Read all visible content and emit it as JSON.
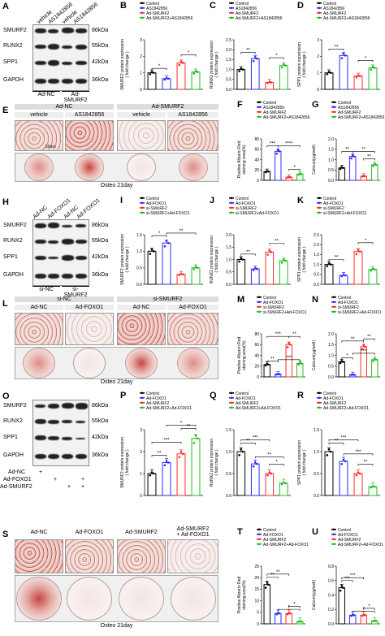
{
  "panels": {
    "A": {
      "label": "A",
      "lanes": [
        "vehicle",
        "AS1842856",
        "vehicle",
        "AS1842856"
      ],
      "groups": [
        "Ad-NC",
        "Ad-SMURF2"
      ],
      "rows": [
        {
          "name": "SMURF2",
          "kda": "86kDa"
        },
        {
          "name": "RUNX2",
          "kda": "55kDa"
        },
        {
          "name": "SPP1",
          "kda": "42kDa"
        },
        {
          "name": "GAPDH",
          "kda": "36kDa"
        }
      ]
    },
    "E": {
      "label": "E",
      "groups": [
        "Ad-NC",
        "Ad-SMURF2"
      ],
      "lanes": [
        "vehicle",
        "AS1842856",
        "vehicle",
        "AS1842856"
      ],
      "footer": "Osteo 21day",
      "scale": "50um"
    },
    "H": {
      "label": "H",
      "lanes": [
        "Ad-NC",
        "Ad-FOXO1",
        "Ad-NC",
        "Ad-FOXO1"
      ],
      "groups": [
        "si-NC",
        "si-SMURF2"
      ],
      "rows": [
        {
          "name": "SMURF2",
          "kda": "86kDa"
        },
        {
          "name": "RUNX2",
          "kda": "55kDa"
        },
        {
          "name": "SPP1",
          "kda": "42kDa"
        },
        {
          "name": "GAPDH",
          "kda": "36kDa"
        }
      ]
    },
    "L": {
      "label": "L",
      "groups": [
        "si-NC",
        "si-SMURF2"
      ],
      "lanes": [
        "Ad-NC",
        "Ad-FOXO1",
        "Ad-NC",
        "Ad-FOXO1"
      ],
      "footer": "Osteo 21day"
    },
    "O": {
      "label": "O",
      "rows": [
        {
          "name": "SMURF2",
          "kda": "86kDa"
        },
        {
          "name": "RUNX2",
          "kda": "55kDa"
        },
        {
          "name": "SPP1",
          "kda": "42kDa"
        },
        {
          "name": "GAPDH",
          "kda": "36kDa"
        }
      ],
      "treatments": [
        {
          "name": "Ad-NC",
          "marks": [
            "+",
            "",
            "",
            ""
          ]
        },
        {
          "name": "Ad-FOXO1",
          "marks": [
            "",
            "+",
            "",
            "+"
          ]
        },
        {
          "name": "Ad-SMURF2",
          "marks": [
            "",
            "",
            "+",
            "+"
          ]
        }
      ]
    },
    "S": {
      "label": "S",
      "lanes": [
        "Ad-NC",
        "Ad-FOXO1",
        "Ad-SMURF2",
        "Ad-SMURF2\n+ Ad-FOXO1"
      ],
      "footer": "Osteo 21day"
    }
  },
  "legends": {
    "row1": [
      "Control",
      "AS1842856",
      "Ad-SMURF2",
      "Ad-SMURF2+AS1842856"
    ],
    "row3": [
      "Control",
      "Ad-FOXO1",
      "si-SMURF2",
      "si-SMURF2+Ad-FOXO1"
    ],
    "row5": [
      "Control",
      "Ad-FOXO1",
      "Ad-SMURF2",
      "Ad-SMURF2+Ad-FOXO1"
    ]
  },
  "colors": {
    "s1": "#000000",
    "s2": "#2b2bff",
    "s3": "#ff2b2b",
    "s4": "#22bb22"
  },
  "chart_data": [
    {
      "id": "B",
      "type": "bar",
      "ylabel": "SMURF2 protein expression\n( fold change )",
      "ylim": [
        0,
        3
      ],
      "ticks": [
        "0",
        "1",
        "2",
        "3"
      ],
      "values": [
        1.0,
        0.65,
        1.6,
        1.05
      ],
      "legend": "row1",
      "sig": [
        {
          "a": 0,
          "b": 1,
          "t": "*"
        },
        {
          "a": 2,
          "b": 3,
          "t": "*"
        }
      ]
    },
    {
      "id": "C",
      "type": "bar",
      "ylabel": "RUNX2 protein expression\n( fold change )",
      "ylim": [
        0,
        2.5
      ],
      "ticks": [
        "0.0",
        "0.5",
        "1.0",
        "1.5",
        "2.0",
        "2.5"
      ],
      "values": [
        1.0,
        1.55,
        0.35,
        1.2
      ],
      "legend": "row1",
      "sig": [
        {
          "a": 0,
          "b": 1,
          "t": "**"
        },
        {
          "a": 2,
          "b": 3,
          "t": "*"
        }
      ]
    },
    {
      "id": "D",
      "type": "bar",
      "ylabel": "SPP1 protein expression\n( fold change )",
      "ylim": [
        0,
        3
      ],
      "ticks": [
        "0",
        "1",
        "2",
        "3"
      ],
      "values": [
        1.0,
        2.05,
        0.8,
        1.3
      ],
      "legend": "row1",
      "sig": [
        {
          "a": 0,
          "b": 1,
          "t": "**"
        },
        {
          "a": 2,
          "b": 3,
          "t": "*"
        }
      ]
    },
    {
      "id": "F",
      "type": "bar",
      "ylabel": "Positive Alizarin Red\nstaining area(%)",
      "ylim": [
        0,
        80
      ],
      "ticks": [
        "0",
        "20",
        "40",
        "60",
        "80"
      ],
      "values": [
        17,
        56,
        6,
        12
      ],
      "legend": "row1",
      "sig": [
        {
          "a": 0,
          "b": 1,
          "t": "***"
        },
        {
          "a": 2,
          "b": 3,
          "t": "*"
        },
        {
          "a": 1,
          "b": 3,
          "t": "****"
        }
      ]
    },
    {
      "id": "G",
      "type": "bar",
      "ylabel": "Calcium(μg/well)",
      "ylim": [
        0,
        2.0
      ],
      "ticks": [
        "0.0",
        "0.5",
        "1.0",
        "1.5",
        "2.0"
      ],
      "values": [
        0.6,
        1.15,
        0.2,
        0.75
      ],
      "legend": "row1",
      "sig": [
        {
          "a": 0,
          "b": 1,
          "t": "**"
        },
        {
          "a": 2,
          "b": 3,
          "t": "**"
        },
        {
          "a": 1,
          "b": 3,
          "t": "**"
        }
      ]
    },
    {
      "id": "I",
      "type": "bar",
      "ylabel": "SMURF2 protein expression\n( fold change )",
      "ylim": [
        0,
        1.5
      ],
      "ticks": [
        "0.0",
        "0.5",
        "1.0",
        "1.5"
      ],
      "values": [
        1.0,
        1.25,
        0.3,
        0.5
      ],
      "legend": "row3",
      "sig": [
        {
          "a": 0,
          "b": 1,
          "t": "*"
        },
        {
          "a": 1,
          "b": 3,
          "t": "**"
        }
      ]
    },
    {
      "id": "J",
      "type": "bar",
      "ylabel": "RUNX2 protein expression\n( fold change )",
      "ylim": [
        0,
        2.0
      ],
      "ticks": [
        "0.0",
        "0.5",
        "1.0",
        "1.5",
        "2.0"
      ],
      "values": [
        1.0,
        0.62,
        1.3,
        0.95
      ],
      "legend": "row3",
      "sig": [
        {
          "a": 0,
          "b": 1,
          "t": "**"
        },
        {
          "a": 2,
          "b": 3,
          "t": "**"
        }
      ]
    },
    {
      "id": "K",
      "type": "bar",
      "ylabel": "SPP1 protein expression\n( fold change )",
      "ylim": [
        0,
        2.5
      ],
      "ticks": [
        "0.0",
        "0.5",
        "1.0",
        "1.5",
        "2.0",
        "2.5"
      ],
      "values": [
        1.0,
        0.45,
        1.65,
        0.75
      ],
      "legend": "row3",
      "sig": [
        {
          "a": 0,
          "b": 1,
          "t": "**"
        },
        {
          "a": 2,
          "b": 3,
          "t": "*"
        }
      ]
    },
    {
      "id": "M",
      "type": "bar",
      "ylabel": "Positive Alizarin Red\nstaining area(%)",
      "ylim": [
        0,
        80
      ],
      "ticks": [
        "0",
        "20",
        "40",
        "60",
        "80"
      ],
      "values": [
        23,
        5,
        60,
        25
      ],
      "legend": "row3",
      "sig": [
        {
          "a": 0,
          "b": 1,
          "t": "**"
        },
        {
          "a": 2,
          "b": 3,
          "t": "**"
        },
        {
          "a": 1,
          "b": 3,
          "t": "***"
        },
        {
          "a": 0,
          "b": 2,
          "t": "***"
        }
      ]
    },
    {
      "id": "N",
      "type": "bar",
      "ylabel": "Calcium(μg/well)",
      "ylim": [
        0,
        2.0
      ],
      "ticks": [
        "0.0",
        "0.5",
        "1.0",
        "1.5",
        "2.0"
      ],
      "values": [
        0.7,
        0.1,
        1.4,
        0.8
      ],
      "legend": "row3",
      "sig": [
        {
          "a": 0,
          "b": 1,
          "t": "*"
        },
        {
          "a": 2,
          "b": 3,
          "t": "**"
        },
        {
          "a": 0,
          "b": 2,
          "t": "**"
        },
        {
          "a": 1,
          "b": 3,
          "t": "***"
        }
      ]
    },
    {
      "id": "P",
      "type": "bar",
      "ylabel": "SMURF2 protein expression\n( fold change )",
      "ylim": [
        0,
        3
      ],
      "ticks": [
        "0",
        "1",
        "2",
        "3"
      ],
      "values": [
        1.0,
        1.5,
        1.9,
        2.6
      ],
      "legend": "row5",
      "sig": [
        {
          "a": 0,
          "b": 1,
          "t": "**"
        },
        {
          "a": 1,
          "b": 3,
          "t": "*"
        },
        {
          "a": 2,
          "b": 3,
          "t": "**"
        },
        {
          "a": 0,
          "b": 2,
          "t": "***"
        }
      ]
    },
    {
      "id": "Q",
      "type": "bar",
      "ylabel": "RUNX2 protein expression\n( fold change )",
      "ylim": [
        0,
        1.5
      ],
      "ticks": [
        "0.0",
        "0.5",
        "1.0",
        "1.5"
      ],
      "values": [
        1.0,
        0.72,
        0.5,
        0.28
      ],
      "legend": "row5",
      "sig": [
        {
          "a": 0,
          "b": 1,
          "t": "**"
        },
        {
          "a": 0,
          "b": 2,
          "t": "***"
        },
        {
          "a": 1,
          "b": 3,
          "t": "**"
        },
        {
          "a": 2,
          "b": 3,
          "t": "*"
        }
      ]
    },
    {
      "id": "R",
      "type": "bar",
      "ylabel": "SPP1 protein expression\n( fold change )",
      "ylim": [
        0,
        1.5
      ],
      "ticks": [
        "0.0",
        "0.5",
        "1.0",
        "1.5"
      ],
      "values": [
        1.0,
        0.78,
        0.5,
        0.2
      ],
      "legend": "row5",
      "sig": [
        {
          "a": 0,
          "b": 1,
          "t": "**"
        },
        {
          "a": 0,
          "b": 2,
          "t": "***"
        },
        {
          "a": 1,
          "b": 3,
          "t": "***"
        },
        {
          "a": 2,
          "b": 3,
          "t": "**"
        }
      ]
    },
    {
      "id": "T",
      "type": "bar",
      "ylabel": "Positive Alizarin Red\nstaining area(%)",
      "ylim": [
        0,
        25
      ],
      "ticks": [
        "0",
        "5",
        "10",
        "15",
        "20",
        "25"
      ],
      "values": [
        17,
        4.5,
        4.5,
        1
      ],
      "legend": "row5",
      "sig": [
        {
          "a": 0,
          "b": 1,
          "t": "**"
        },
        {
          "a": 0,
          "b": 2,
          "t": "**"
        },
        {
          "a": 1,
          "b": 3,
          "t": "*"
        },
        {
          "a": 2,
          "b": 3,
          "t": "*"
        }
      ]
    },
    {
      "id": "U",
      "type": "bar",
      "ylabel": "Calcium(μg/well)",
      "ylim": [
        0,
        0.8
      ],
      "ticks": [
        "0.0",
        "0.2",
        "0.4",
        "0.6",
        "0.8"
      ],
      "values": [
        0.5,
        0.12,
        0.12,
        0.04
      ],
      "legend": "row5",
      "sig": [
        {
          "a": 0,
          "b": 1,
          "t": "***"
        },
        {
          "a": 0,
          "b": 2,
          "t": "***"
        },
        {
          "a": 1,
          "b": 3,
          "t": "*"
        },
        {
          "a": 2,
          "b": 3,
          "t": "*"
        }
      ]
    }
  ]
}
